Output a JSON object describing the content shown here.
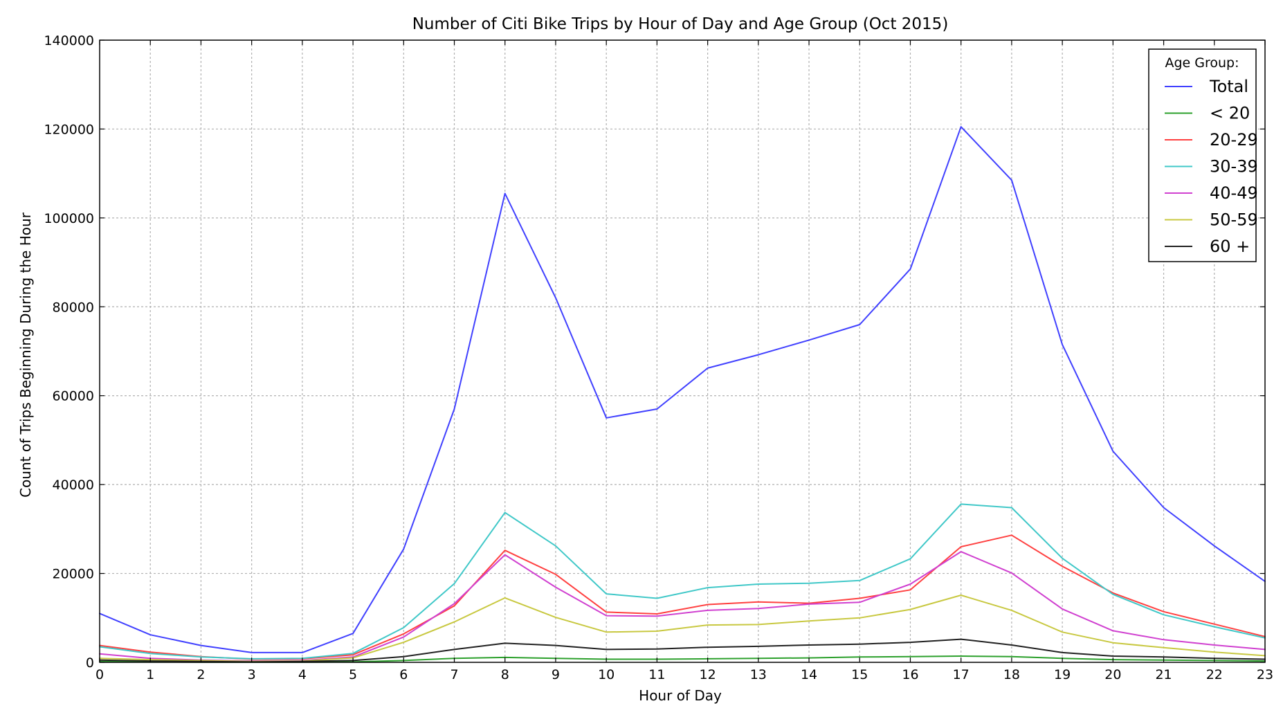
{
  "chart_data": {
    "type": "line",
    "title": "Number of Citi Bike Trips by Hour of Day and Age Group (Oct 2015)",
    "xlabel": "Hour of Day",
    "ylabel": "Count of Trips Beginning During the Hour",
    "xlim": [
      0,
      23
    ],
    "ylim": [
      0,
      140000
    ],
    "x": [
      0,
      1,
      2,
      3,
      4,
      5,
      6,
      7,
      8,
      9,
      10,
      11,
      12,
      13,
      14,
      15,
      16,
      17,
      18,
      19,
      20,
      21,
      22,
      23
    ],
    "x_ticks": [
      "0",
      "1",
      "2",
      "3",
      "4",
      "5",
      "6",
      "7",
      "8",
      "9",
      "10",
      "11",
      "12",
      "13",
      "14",
      "15",
      "16",
      "17",
      "18",
      "19",
      "20",
      "21",
      "22",
      "23"
    ],
    "y_ticks": [
      "0",
      "20000",
      "40000",
      "60000",
      "80000",
      "100000",
      "120000",
      "140000"
    ],
    "grid": true,
    "legend": {
      "title": "Age Group:",
      "placement": "top-right"
    },
    "series": [
      {
        "name": "Total",
        "color": "#4040ff",
        "values": [
          11000,
          6200,
          3800,
          2200,
          2200,
          6500,
          25500,
          57000,
          105500,
          82000,
          55000,
          57000,
          66200,
          69200,
          72500,
          76000,
          88500,
          120500,
          108500,
          71500,
          47500,
          34800,
          26200,
          18200
        ]
      },
      {
        "name": "< 20",
        "color": "#2ca02c",
        "values": [
          200,
          100,
          50,
          50,
          50,
          100,
          400,
          900,
          1100,
          900,
          700,
          700,
          800,
          900,
          1000,
          1200,
          1300,
          1400,
          1300,
          900,
          600,
          500,
          400,
          300
        ]
      },
      {
        "name": "20-29",
        "color": "#ff4040",
        "values": [
          3800,
          2300,
          1300,
          700,
          800,
          1700,
          6400,
          12700,
          25200,
          19800,
          11300,
          10900,
          13000,
          13600,
          13300,
          14400,
          16300,
          26000,
          28600,
          21600,
          15600,
          11400,
          8600,
          5800
        ]
      },
      {
        "name": "30-39",
        "color": "#40c8c8",
        "values": [
          3500,
          2000,
          1200,
          800,
          900,
          2000,
          7800,
          17700,
          33700,
          26200,
          15400,
          14400,
          16800,
          17600,
          17800,
          18400,
          23300,
          35600,
          34800,
          23400,
          15300,
          10700,
          8000,
          5500
        ]
      },
      {
        "name": "40-49",
        "color": "#d040d0",
        "values": [
          1900,
          900,
          500,
          300,
          400,
          1200,
          5700,
          13200,
          24200,
          16900,
          10500,
          10400,
          11700,
          12100,
          13100,
          13500,
          17600,
          24900,
          20100,
          12000,
          7100,
          5100,
          3900,
          2900
        ]
      },
      {
        "name": "50-59",
        "color": "#c8c840",
        "values": [
          900,
          600,
          400,
          200,
          300,
          1000,
          4500,
          9100,
          14500,
          10100,
          6800,
          7000,
          8400,
          8500,
          9300,
          10000,
          11900,
          15100,
          11700,
          6800,
          4400,
          3300,
          2300,
          1500
        ]
      },
      {
        "name": "60 +",
        "color": "#202020",
        "values": [
          500,
          300,
          200,
          100,
          200,
          400,
          1300,
          2900,
          4300,
          3800,
          2900,
          3000,
          3400,
          3600,
          3900,
          4100,
          4500,
          5200,
          3900,
          2200,
          1400,
          1200,
          900,
          700
        ]
      }
    ]
  }
}
